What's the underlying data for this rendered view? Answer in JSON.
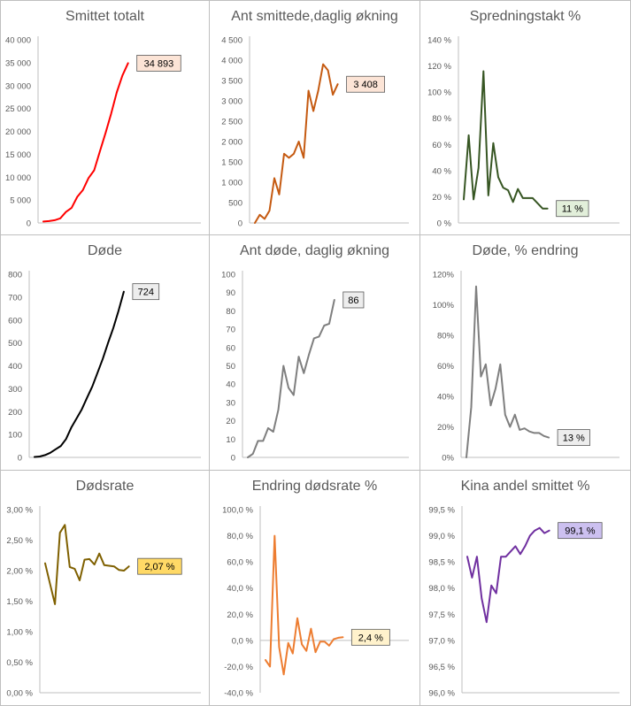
{
  "chart_data": [
    {
      "type": "line",
      "title": "Smittet totalt",
      "ylim": [
        0,
        40000
      ],
      "yticks": [
        "0",
        "5 000",
        "10 000",
        "15 000",
        "20 000",
        "25 000",
        "30 000",
        "35 000",
        "40 000"
      ],
      "grid": false,
      "series": [
        {
          "color": "#ff0000",
          "values": [
            300,
            400,
            600,
            1000,
            2400,
            3300,
            5700,
            7200,
            9800,
            11500,
            15600,
            19600,
            23800,
            28500,
            32200,
            34893
          ]
        }
      ],
      "end_label": "34 893",
      "label_fill": "#fce4d6"
    },
    {
      "type": "line",
      "title": "Ant smittede,daglig økning",
      "ylim": [
        0,
        4500
      ],
      "yticks": [
        "0",
        "500",
        "1 000",
        "1 500",
        "2 000",
        "2 500",
        "3 000",
        "3 500",
        "4 000",
        "4 500"
      ],
      "grid": false,
      "series": [
        {
          "color": "#c55a11",
          "values": [
            0,
            200,
            100,
            300,
            1100,
            700,
            1700,
            1600,
            1700,
            2000,
            1600,
            3250,
            2750,
            3250,
            3900,
            3750,
            3150,
            3408
          ]
        }
      ],
      "end_label": "3 408",
      "label_fill": "#fce4d6"
    },
    {
      "type": "line",
      "title": "Spredningstakt %",
      "ylim": [
        0,
        140
      ],
      "yticks": [
        "0 %",
        "20 %",
        "40 %",
        "60 %",
        "80 %",
        "100 %",
        "120 %",
        "140 %"
      ],
      "grid": false,
      "series": [
        {
          "color": "#375623",
          "values": [
            18,
            67,
            18,
            42,
            116,
            21,
            61,
            35,
            27,
            25,
            16,
            26,
            19,
            19,
            19,
            15,
            11,
            11
          ]
        }
      ],
      "end_label": "11 %",
      "label_fill": "#e2efda"
    },
    {
      "type": "line",
      "title": "Døde",
      "ylim": [
        0,
        800
      ],
      "yticks": [
        "0",
        "100",
        "200",
        "300",
        "400",
        "500",
        "600",
        "700",
        "800"
      ],
      "grid": false,
      "series": [
        {
          "color": "#000000",
          "values": [
            2,
            4,
            10,
            20,
            35,
            50,
            80,
            130,
            170,
            210,
            260,
            310,
            370,
            430,
            500,
            565,
            640,
            724
          ]
        }
      ],
      "end_label": "724",
      "label_fill": "#ededed"
    },
    {
      "type": "line",
      "title": "Ant døde, daglig økning",
      "ylim": [
        0,
        100
      ],
      "yticks": [
        "0",
        "10",
        "20",
        "30",
        "40",
        "50",
        "60",
        "70",
        "80",
        "90",
        "100"
      ],
      "grid": false,
      "series": [
        {
          "color": "#7f7f7f",
          "values": [
            0,
            2,
            9,
            9,
            16,
            14,
            26,
            50,
            38,
            34,
            55,
            46,
            56,
            65,
            66,
            72,
            73,
            86
          ]
        }
      ],
      "end_label": "86",
      "label_fill": "#ededed"
    },
    {
      "type": "line",
      "title": "Døde, % endring",
      "ylim": [
        0,
        120
      ],
      "yticks": [
        "0%",
        "20%",
        "40%",
        "60%",
        "80%",
        "100%",
        "120%"
      ],
      "grid": false,
      "series": [
        {
          "color": "#7f7f7f",
          "values": [
            0,
            33,
            112,
            53,
            61,
            34,
            45,
            61,
            28,
            20,
            28,
            18,
            19,
            17,
            16,
            16,
            14,
            13
          ]
        }
      ],
      "end_label": "13 %",
      "label_fill": "#ededed"
    },
    {
      "type": "line",
      "title": "Dødsrate",
      "ylim": [
        0,
        3
      ],
      "yticks": [
        "0,00 %",
        "0,50 %",
        "1,00 %",
        "1,50 %",
        "2,00 %",
        "2,50 %",
        "3,00 %"
      ],
      "grid": false,
      "series": [
        {
          "color": "#7f6000",
          "values": [
            2.12,
            1.78,
            1.45,
            2.62,
            2.75,
            2.06,
            2.03,
            1.84,
            2.18,
            2.19,
            2.1,
            2.28,
            2.09,
            2.08,
            2.07,
            2.01,
            2.0,
            2.07
          ]
        }
      ],
      "end_label": "2,07 %",
      "label_fill": "#ffd966"
    },
    {
      "type": "line",
      "title": "Endring dødsrate %",
      "ylim": [
        -40,
        100
      ],
      "yticks": [
        "-40,0 %",
        "-20,0 %",
        "0,0 %",
        "20,0 %",
        "40,0 %",
        "60,0 %",
        "80,0 %",
        "100,0 %"
      ],
      "grid": false,
      "zero_line": true,
      "series": [
        {
          "color": "#ed7d31",
          "values": [
            -15,
            -20,
            80,
            -5,
            -26,
            -2,
            -10,
            17,
            -3,
            -8,
            9,
            -9,
            -1,
            -1,
            -4,
            1,
            2,
            2.4
          ]
        }
      ],
      "end_label": "2,4 %",
      "label_fill": "#fff2cc"
    },
    {
      "type": "line",
      "title": "Kina andel smittet %",
      "ylim": [
        96.0,
        99.5
      ],
      "yticks": [
        "96,0 %",
        "96,5 %",
        "97,0 %",
        "97,5 %",
        "98,0 %",
        "98,5 %",
        "99,0 %",
        "99,5 %"
      ],
      "grid": false,
      "series": [
        {
          "color": "#7030a0",
          "values": [
            98.6,
            98.2,
            98.6,
            97.8,
            97.35,
            98.05,
            97.9,
            98.6,
            98.6,
            98.7,
            98.8,
            98.65,
            98.8,
            99.0,
            99.1,
            99.15,
            99.05,
            99.1
          ]
        }
      ],
      "end_label": "99,1 %",
      "label_fill": "#ccc0f0"
    }
  ]
}
